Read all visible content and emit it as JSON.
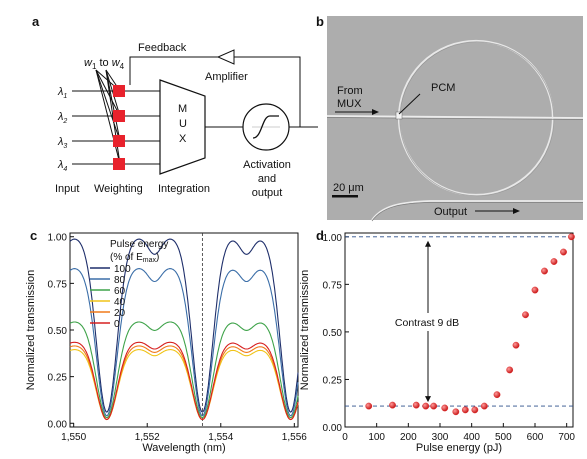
{
  "panels": {
    "a": "a",
    "b": "b",
    "c": "c",
    "d": "d"
  },
  "panel_a": {
    "weights_label": "w1 to w4",
    "weights_parts": {
      "w": "w",
      "one": "1",
      "to": " to ",
      "four": "4"
    },
    "feedback": "Feedback",
    "amplifier": "Amplifier",
    "mux_letters": [
      "M",
      "U",
      "X"
    ],
    "lambda_symbol": "λ",
    "inputs": [
      {
        "sub": "1",
        "color": "#9bbf2e"
      },
      {
        "sub": "2",
        "color": "#2e8b57"
      },
      {
        "sub": "3",
        "color": "#2f7fc1"
      },
      {
        "sub": "4",
        "color": "#8b3fb0"
      }
    ],
    "weight_color": "#e8222c",
    "bottom_labels": {
      "input": "Input",
      "weighting": "Weighting",
      "integration": "Integration",
      "activation": [
        "Activation",
        "and",
        "output"
      ]
    }
  },
  "panel_b": {
    "from_mux": [
      "From",
      "MUX"
    ],
    "pcm": "PCM",
    "scalebar": "20 μm",
    "output": "Output"
  },
  "panel_c": {
    "legend_title": [
      "Pulse energy",
      "(% of E"
    ],
    "legend_title_sub": "max",
    "legend_title_close": ")",
    "xlabel": "Wavelength (nm)",
    "ylabel": "Normalized transmission"
  },
  "panel_d": {
    "xlabel": "Pulse energy (pJ)",
    "ylabel": "Normalized transmission",
    "contrast": "Contrast 9 dB"
  },
  "chart_data": [
    {
      "type": "line",
      "panel": "c",
      "xlabel": "Wavelength (nm)",
      "ylabel": "Normalized transmission",
      "xlim": [
        1549.9,
        1556.1
      ],
      "ylim": [
        -0.02,
        1.02
      ],
      "xticks": [
        1550,
        1552,
        1554,
        1556
      ],
      "xtick_labels": [
        "1,550",
        "1,552",
        "1,554",
        "1,556"
      ],
      "yticks": [
        0.0,
        0.25,
        0.5,
        0.75,
        1.0
      ],
      "ytick_labels": [
        "0.00",
        "0.25",
        "0.50",
        "0.75",
        "1.00"
      ],
      "vline_x": 1553.5,
      "resonances": [
        1550.9,
        1553.5,
        1555.9
      ],
      "series": [
        {
          "name": "100",
          "color": "#1f2f6b",
          "peak": 1.0,
          "dip": 0.06
        },
        {
          "name": "80",
          "color": "#3b6ea8",
          "peak": 0.84,
          "dip": 0.04
        },
        {
          "name": "60",
          "color": "#3fa34a",
          "peak": 0.55,
          "dip": 0.03
        },
        {
          "name": "40",
          "color": "#f0c419",
          "peak": 0.4,
          "dip": 0.02
        },
        {
          "name": "20",
          "color": "#f07a1a",
          "peak": 0.42,
          "dip": 0.02
        },
        {
          "name": "0",
          "color": "#d62020",
          "peak": 0.44,
          "dip": 0.02
        }
      ]
    },
    {
      "type": "scatter",
      "panel": "d",
      "xlabel": "Pulse energy (pJ)",
      "ylabel": "Normalized transmission",
      "xlim": [
        0,
        720
      ],
      "ylim": [
        0.0,
        1.02
      ],
      "xticks": [
        0,
        100,
        200,
        300,
        400,
        500,
        600,
        700
      ],
      "yticks": [
        0.0,
        0.25,
        0.5,
        0.75,
        1.0
      ],
      "ytick_labels": [
        "0.00",
        "0.25",
        "0.50",
        "0.75",
        "1.00"
      ],
      "hlines": [
        1.0,
        0.11
      ],
      "annotation": "Contrast 9 dB",
      "points": [
        [
          75,
          0.11
        ],
        [
          150,
          0.115
        ],
        [
          225,
          0.115
        ],
        [
          255,
          0.11
        ],
        [
          280,
          0.11
        ],
        [
          315,
          0.1
        ],
        [
          350,
          0.08
        ],
        [
          380,
          0.09
        ],
        [
          410,
          0.09
        ],
        [
          440,
          0.11
        ],
        [
          480,
          0.17
        ],
        [
          520,
          0.3
        ],
        [
          540,
          0.43
        ],
        [
          570,
          0.59
        ],
        [
          600,
          0.72
        ],
        [
          630,
          0.82
        ],
        [
          660,
          0.87
        ],
        [
          690,
          0.92
        ],
        [
          715,
          1.0
        ]
      ],
      "point_color": "#e02b2b"
    }
  ]
}
